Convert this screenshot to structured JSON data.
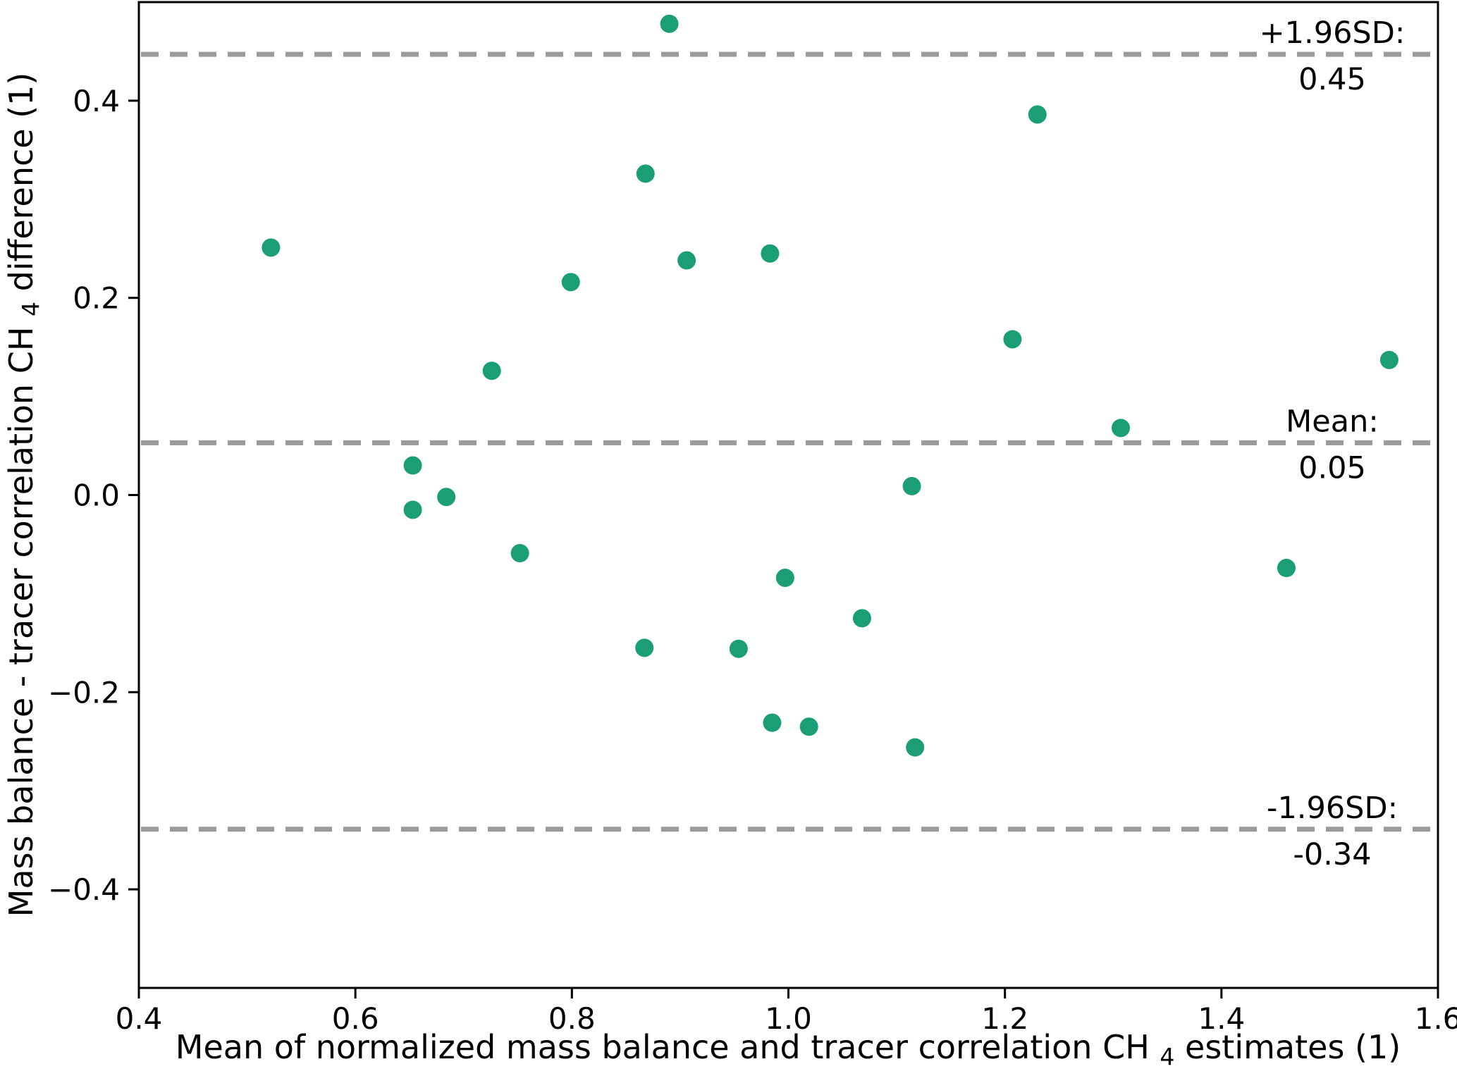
{
  "chart_data": {
    "type": "scatter",
    "title": "",
    "xlabel_parts": {
      "prefix": "Mean of normalized mass balance and tracer correlation CH",
      "sub": "4",
      "suffix": " estimates (1)"
    },
    "ylabel_parts": {
      "prefix": "Mass balance - tracer correlation CH",
      "sub": "4",
      "suffix": " difference (1)"
    },
    "xlim": [
      0.4,
      1.6
    ],
    "ylim": [
      -0.5,
      0.5
    ],
    "x_ticks": [
      0.4,
      0.6,
      0.8,
      1.0,
      1.2,
      1.4,
      1.6
    ],
    "x_tick_labels": [
      "0.4",
      "0.6",
      "0.8",
      "1.0",
      "1.2",
      "1.4",
      "1.6"
    ],
    "y_ticks": [
      0.4,
      0.2,
      0.0,
      -0.2,
      -0.4
    ],
    "y_tick_labels": [
      "0.4",
      "0.2",
      "0.0",
      "−0.2",
      "−0.4"
    ],
    "grid": false,
    "legend": false,
    "marker_color": "#1b9e77",
    "dashed_line_color": "#9a9a9a",
    "points": [
      [
        0.522,
        0.251
      ],
      [
        0.653,
        0.03
      ],
      [
        0.653,
        -0.015
      ],
      [
        0.684,
        -0.002
      ],
      [
        0.726,
        0.126
      ],
      [
        0.752,
        -0.059
      ],
      [
        0.799,
        0.216
      ],
      [
        0.868,
        0.326
      ],
      [
        0.867,
        -0.155
      ],
      [
        0.89,
        0.478
      ],
      [
        0.906,
        0.238
      ],
      [
        0.954,
        -0.156
      ],
      [
        0.983,
        0.245
      ],
      [
        0.985,
        -0.231
      ],
      [
        0.997,
        -0.084
      ],
      [
        1.019,
        -0.235
      ],
      [
        1.068,
        -0.125
      ],
      [
        1.114,
        0.009
      ],
      [
        1.117,
        -0.256
      ],
      [
        1.207,
        0.158
      ],
      [
        1.23,
        0.386
      ],
      [
        1.307,
        0.068
      ],
      [
        1.46,
        -0.074
      ],
      [
        1.555,
        0.137
      ]
    ],
    "lines": [
      {
        "id": "upper-loa",
        "label": "+1.96SD:",
        "value_label": "0.45",
        "y": 0.447
      },
      {
        "id": "mean",
        "label": "Mean:",
        "value_label": "0.05",
        "y": 0.053
      },
      {
        "id": "lower-loa",
        "label": "-1.96SD:",
        "value_label": "-0.34",
        "y": -0.339
      }
    ]
  }
}
